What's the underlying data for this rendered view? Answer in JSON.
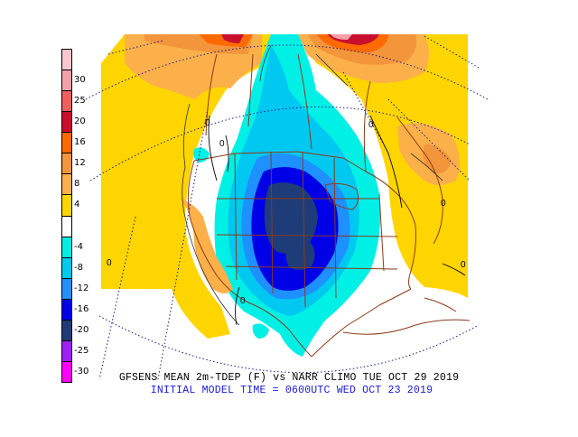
{
  "title": "GFSENS MEAN 2m-TDEP (F) vs NARR CLIMO TUE OCT 29 2019",
  "subtitle": "INITIAL MODEL TIME = 0600UTC WED OCT 23 2019",
  "colorbar": {
    "units": "F",
    "levels": [
      {
        "label": "",
        "color": "#f9c7cd"
      },
      {
        "label": "30",
        "color": "#f4a0a8"
      },
      {
        "label": "25",
        "color": "#ee5e5e"
      },
      {
        "label": "20",
        "color": "#c8102e"
      },
      {
        "label": "16",
        "color": "#ff6a00"
      },
      {
        "label": "12",
        "color": "#f2953b"
      },
      {
        "label": "8",
        "color": "#fbb04a"
      },
      {
        "label": "4",
        "color": "#ffd500"
      },
      {
        "label": "",
        "color": "#ffffff"
      },
      {
        "label": "-4",
        "color": "#00f0e6"
      },
      {
        "label": "-8",
        "color": "#00c8f0"
      },
      {
        "label": "-12",
        "color": "#1e90ff"
      },
      {
        "label": "-16",
        "color": "#0000e6"
      },
      {
        "label": "-20",
        "color": "#1e3c78"
      },
      {
        "label": "-25",
        "color": "#a020f0"
      },
      {
        "label": "-30",
        "color": "#ff00ff"
      }
    ]
  },
  "contour_labels": [
    "0",
    "0",
    "0",
    "0",
    "0",
    "0",
    "0"
  ],
  "colors": {
    "warm_yellow": "#ffd500",
    "warm_orange": "#fbb04a",
    "warm_dark_orange": "#f2953b",
    "hot_orange": "#ff6a00",
    "hot_red": "#c8102e",
    "cold_cyan": "#00f0e6",
    "cold_sky": "#00c8f0",
    "cold_blue": "#1e90ff",
    "cold_deep_blue": "#0000e6",
    "cold_navy": "#1e3c78",
    "boundary_brown": "#8b3a1a",
    "grid_navy": "#1a1a8c",
    "title_black": "#000000",
    "subtitle_blue": "#1a1adc"
  }
}
